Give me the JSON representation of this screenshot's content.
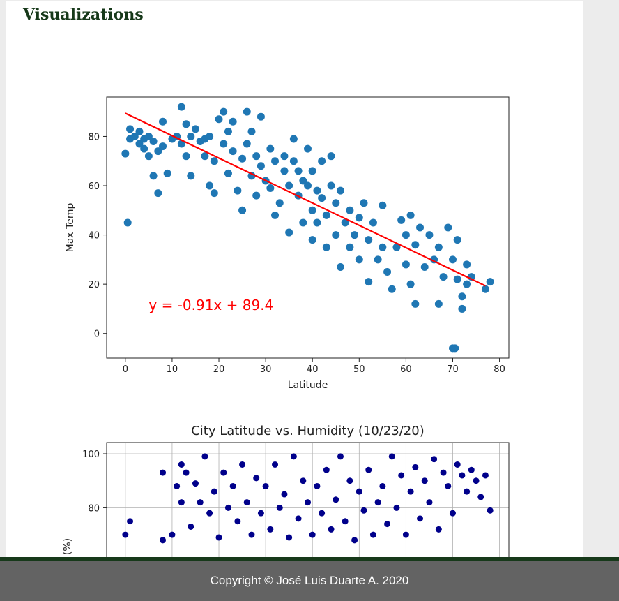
{
  "page": {
    "title": "Visualizations",
    "footer_text": "Copyright © José Luis Duarte A. 2020"
  },
  "colors": {
    "heading": "#17391a",
    "footer_bg": "#636363",
    "footer_bar": "#17391a",
    "temp_points": "#1f77b4",
    "regression": "#ff0000",
    "humidity_points": "#00008b",
    "grid": "#b0b0b0"
  },
  "chart_data": [
    {
      "type": "scatter",
      "title": "",
      "xlabel": "Latitude",
      "ylabel": "Max Temp",
      "xlim": [
        -4,
        82
      ],
      "ylim": [
        -10,
        96
      ],
      "xticks": [
        0,
        10,
        20,
        30,
        40,
        50,
        60,
        70,
        80
      ],
      "yticks": [
        0,
        20,
        40,
        60,
        80
      ],
      "grid": false,
      "regression": {
        "slope": -0.91,
        "intercept": 89.4,
        "x_range": [
          0,
          77
        ],
        "equation_label": "y = -0.91x + 89.4"
      },
      "points": [
        [
          0,
          73
        ],
        [
          0.5,
          45
        ],
        [
          1,
          83
        ],
        [
          1,
          79
        ],
        [
          2,
          80
        ],
        [
          3,
          77
        ],
        [
          3,
          82
        ],
        [
          4,
          75
        ],
        [
          4,
          79
        ],
        [
          5,
          80
        ],
        [
          5,
          72
        ],
        [
          6,
          78
        ],
        [
          6,
          64
        ],
        [
          7,
          74
        ],
        [
          7,
          57
        ],
        [
          8,
          86
        ],
        [
          8,
          76
        ],
        [
          9,
          65
        ],
        [
          10,
          79
        ],
        [
          11,
          80
        ],
        [
          12,
          92
        ],
        [
          12,
          77
        ],
        [
          13,
          72
        ],
        [
          13,
          85
        ],
        [
          14,
          64
        ],
        [
          14,
          80
        ],
        [
          15,
          83
        ],
        [
          16,
          78
        ],
        [
          17,
          79
        ],
        [
          17,
          72
        ],
        [
          18,
          60
        ],
        [
          18,
          80
        ],
        [
          19,
          57
        ],
        [
          19,
          70
        ],
        [
          20,
          87
        ],
        [
          21,
          77
        ],
        [
          21,
          90
        ],
        [
          22,
          82
        ],
        [
          22,
          65
        ],
        [
          23,
          86
        ],
        [
          23,
          74
        ],
        [
          24,
          58
        ],
        [
          25,
          71
        ],
        [
          25,
          50
        ],
        [
          26,
          90
        ],
        [
          26,
          77
        ],
        [
          27,
          82
        ],
        [
          27,
          64
        ],
        [
          28,
          72
        ],
        [
          28,
          56
        ],
        [
          29,
          88
        ],
        [
          29,
          68
        ],
        [
          30,
          62
        ],
        [
          31,
          75
        ],
        [
          31,
          59
        ],
        [
          32,
          70
        ],
        [
          32,
          48
        ],
        [
          33,
          53
        ],
        [
          34,
          66
        ],
        [
          34,
          72
        ],
        [
          35,
          41
        ],
        [
          35,
          60
        ],
        [
          36,
          79
        ],
        [
          36,
          70
        ],
        [
          37,
          66
        ],
        [
          37,
          56
        ],
        [
          38,
          62
        ],
        [
          38,
          45
        ],
        [
          39,
          75
        ],
        [
          39,
          60
        ],
        [
          40,
          66
        ],
        [
          40,
          50
        ],
        [
          40,
          38
        ],
        [
          41,
          58
        ],
        [
          41,
          45
        ],
        [
          42,
          70
        ],
        [
          42,
          55
        ],
        [
          43,
          48
        ],
        [
          43,
          35
        ],
        [
          44,
          72
        ],
        [
          44,
          60
        ],
        [
          45,
          53
        ],
        [
          45,
          40
        ],
        [
          46,
          58
        ],
        [
          46,
          27
        ],
        [
          47,
          45
        ],
        [
          48,
          50
        ],
        [
          48,
          35
        ],
        [
          49,
          40
        ],
        [
          50,
          47
        ],
        [
          50,
          30
        ],
        [
          51,
          53
        ],
        [
          52,
          38
        ],
        [
          52,
          21
        ],
        [
          53,
          45
        ],
        [
          54,
          30
        ],
        [
          55,
          35
        ],
        [
          55,
          52
        ],
        [
          56,
          25
        ],
        [
          57,
          18
        ],
        [
          58,
          35
        ],
        [
          59,
          46
        ],
        [
          60,
          28
        ],
        [
          60,
          40
        ],
        [
          61,
          48
        ],
        [
          61,
          20
        ],
        [
          62,
          36
        ],
        [
          62,
          12
        ],
        [
          63,
          43
        ],
        [
          64,
          27
        ],
        [
          65,
          40
        ],
        [
          66,
          30
        ],
        [
          67,
          12
        ],
        [
          67,
          35
        ],
        [
          68,
          23
        ],
        [
          69,
          43
        ],
        [
          70,
          30
        ],
        [
          70,
          -6
        ],
        [
          70.5,
          -6
        ],
        [
          71,
          38
        ],
        [
          71,
          22
        ],
        [
          72,
          15
        ],
        [
          72,
          10
        ],
        [
          73,
          28
        ],
        [
          73,
          20
        ],
        [
          74,
          23
        ],
        [
          77,
          18
        ],
        [
          78,
          21
        ]
      ]
    },
    {
      "type": "scatter",
      "title": "City Latitude vs. Humidity (10/23/20)",
      "xlabel": "",
      "ylabel": "(%)",
      "xlim": [
        -4,
        82
      ],
      "ylim": [
        0,
        104
      ],
      "yticks": [
        80,
        100
      ],
      "grid": true,
      "points": [
        [
          0,
          70
        ],
        [
          1,
          75
        ],
        [
          8,
          93
        ],
        [
          8,
          68
        ],
        [
          10,
          70
        ],
        [
          11,
          88
        ],
        [
          12,
          96
        ],
        [
          12,
          82
        ],
        [
          13,
          93
        ],
        [
          14,
          73
        ],
        [
          15,
          89
        ],
        [
          16,
          82
        ],
        [
          17,
          99
        ],
        [
          18,
          78
        ],
        [
          19,
          86
        ],
        [
          20,
          69
        ],
        [
          21,
          93
        ],
        [
          22,
          80
        ],
        [
          23,
          88
        ],
        [
          24,
          75
        ],
        [
          25,
          96
        ],
        [
          26,
          82
        ],
        [
          27,
          70
        ],
        [
          28,
          91
        ],
        [
          29,
          78
        ],
        [
          30,
          88
        ],
        [
          31,
          72
        ],
        [
          32,
          96
        ],
        [
          33,
          80
        ],
        [
          34,
          85
        ],
        [
          35,
          69
        ],
        [
          36,
          99
        ],
        [
          37,
          76
        ],
        [
          38,
          90
        ],
        [
          39,
          82
        ],
        [
          40,
          70
        ],
        [
          41,
          88
        ],
        [
          42,
          78
        ],
        [
          43,
          94
        ],
        [
          44,
          72
        ],
        [
          45,
          83
        ],
        [
          46,
          99
        ],
        [
          47,
          75
        ],
        [
          48,
          90
        ],
        [
          49,
          68
        ],
        [
          50,
          86
        ],
        [
          51,
          79
        ],
        [
          52,
          94
        ],
        [
          53,
          70
        ],
        [
          54,
          82
        ],
        [
          55,
          88
        ],
        [
          56,
          74
        ],
        [
          57,
          99
        ],
        [
          58,
          80
        ],
        [
          59,
          92
        ],
        [
          60,
          70
        ],
        [
          61,
          86
        ],
        [
          62,
          95
        ],
        [
          63,
          76
        ],
        [
          64,
          90
        ],
        [
          65,
          82
        ],
        [
          66,
          98
        ],
        [
          67,
          72
        ],
        [
          68,
          93
        ],
        [
          69,
          88
        ],
        [
          70,
          78
        ],
        [
          71,
          96
        ],
        [
          72,
          92
        ],
        [
          73,
          86
        ],
        [
          74,
          94
        ],
        [
          75,
          90
        ],
        [
          76,
          84
        ],
        [
          77,
          92
        ],
        [
          78,
          79
        ]
      ]
    }
  ]
}
